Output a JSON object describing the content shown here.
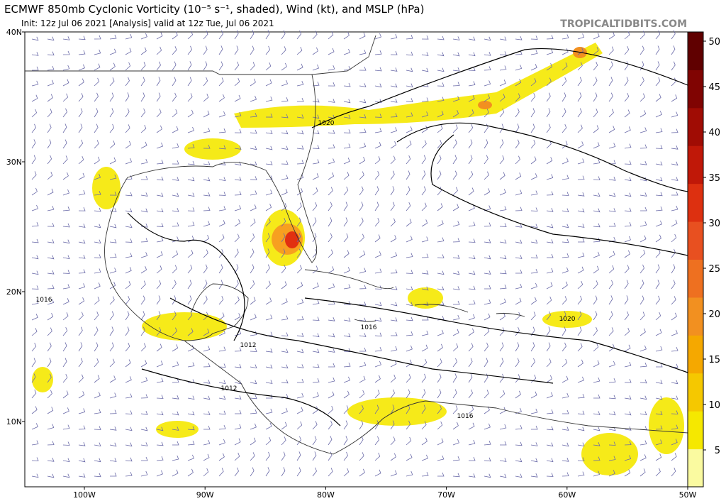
{
  "header": {
    "title": "ECMWF 850mb Cyclonic Vorticity (10⁻⁵ s⁻¹, shaded), Wind (kt), and MSLP (hPa)",
    "subtitle": "Init: 12z Jul 06 2021   [Analysis]   valid at 12z Tue, Jul 06 2021",
    "site": "TROPICALTIDBITS.COM"
  },
  "map": {
    "lat_labels": [
      "40N",
      "30N",
      "20N",
      "10N"
    ],
    "lon_labels": [
      "100W",
      "90W",
      "80W",
      "70W",
      "60W",
      "50W"
    ],
    "isobar_labels": [
      "1020",
      "1016",
      "1016",
      "1012",
      "1012",
      "1016",
      "1020"
    ]
  },
  "colorbar": {
    "labels": [
      "50",
      "45",
      "40",
      "35",
      "30",
      "25",
      "20",
      "15",
      "10",
      "5"
    ]
  }
}
